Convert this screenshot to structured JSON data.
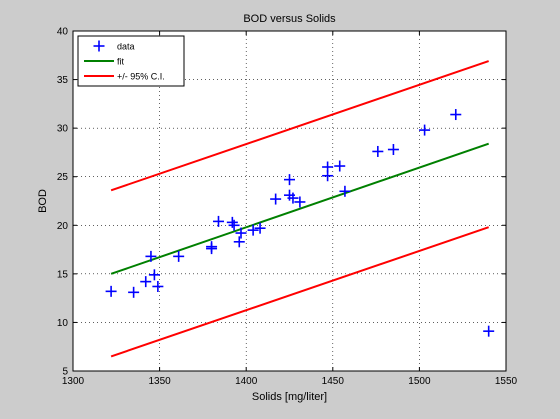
{
  "chart_data": {
    "type": "scatter",
    "title": "BOD versus Solids",
    "xlabel": "Solids [mg/liter]",
    "ylabel": "BOD",
    "xlim": [
      1300,
      1550
    ],
    "ylim": [
      5,
      40
    ],
    "xticks": [
      1300,
      1350,
      1400,
      1450,
      1500,
      1550
    ],
    "yticks": [
      5,
      10,
      15,
      20,
      25,
      30,
      35,
      40
    ],
    "grid": true,
    "legend_position": "top-left",
    "legend": [
      {
        "label": "data",
        "color": "#0000ff",
        "marker": "+"
      },
      {
        "label": "fit",
        "color": "#008000",
        "marker": "line"
      },
      {
        "label": "+/- 95% C.I.",
        "color": "#ff0000",
        "marker": "line"
      }
    ],
    "series": [
      {
        "name": "data",
        "color": "#0000ff",
        "style": "marker",
        "x": [
          1322,
          1335,
          1342,
          1345,
          1347,
          1349,
          1361,
          1380,
          1380,
          1384,
          1392,
          1393,
          1396,
          1397,
          1404,
          1408,
          1417,
          1425,
          1425,
          1427,
          1431,
          1447,
          1447,
          1454,
          1457,
          1476,
          1485,
          1503,
          1521,
          1540
        ],
        "y": [
          13.2,
          13.1,
          14.2,
          16.8,
          14.9,
          13.7,
          16.8,
          17.6,
          17.8,
          20.4,
          20.3,
          20.0,
          18.3,
          19.2,
          19.5,
          19.7,
          22.7,
          24.7,
          23.1,
          22.8,
          22.4,
          26.0,
          25.1,
          26.1,
          23.5,
          27.6,
          27.8,
          29.8,
          31.4,
          9.1
        ]
      },
      {
        "name": "fit",
        "color": "#008000",
        "style": "line",
        "x": [
          1322,
          1540
        ],
        "y": [
          15.0,
          28.4
        ]
      },
      {
        "name": "+/- 95% C.I.",
        "color": "#ff0000",
        "style": "line",
        "x": [
          1322,
          1540
        ],
        "y": [
          23.6,
          36.9
        ]
      },
      {
        "name": "+/- 95% C.I.",
        "color": "#ff0000",
        "style": "line",
        "x": [
          1322,
          1540
        ],
        "y": [
          6.5,
          19.8
        ]
      }
    ]
  }
}
